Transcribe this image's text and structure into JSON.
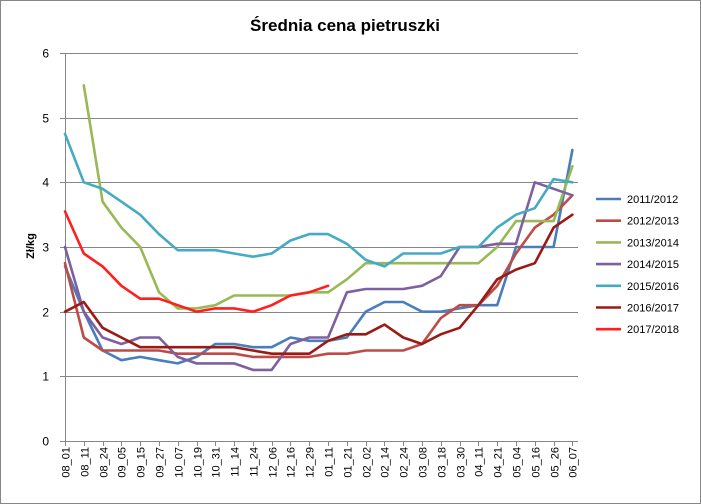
{
  "chart_data": {
    "type": "line",
    "title": "Średnia cena pietruszki",
    "ylabel": "Zł/kg",
    "xlabel": "",
    "ylim": [
      0,
      6
    ],
    "yticks": [
      0,
      1,
      2,
      3,
      4,
      5,
      6
    ],
    "grid": "horizontal",
    "legend_position": "right",
    "categories": [
      "08_01",
      "08_11",
      "08_24",
      "09_05",
      "09_15",
      "09_27",
      "10_07",
      "10_19",
      "10_31",
      "11_14",
      "11_24",
      "12_06",
      "12_16",
      "12_29",
      "01_11",
      "01_21",
      "02_02",
      "02_14",
      "02_24",
      "03_08",
      "03_18",
      "03_30",
      "04_11",
      "04_21",
      "05_04",
      "05_16",
      "05_26",
      "06_07"
    ],
    "series": [
      {
        "name": "2011/2012",
        "color": "#4a7ebb",
        "values": [
          2.7,
          2.0,
          1.4,
          1.25,
          1.3,
          1.25,
          1.2,
          1.3,
          1.5,
          1.5,
          1.45,
          1.45,
          1.6,
          1.55,
          1.55,
          1.6,
          2.0,
          2.15,
          2.15,
          2.0,
          2.0,
          2.05,
          2.1,
          2.1,
          3.0,
          3.0,
          3.0,
          4.5
        ]
      },
      {
        "name": "2012/2013",
        "color": "#be4b48",
        "values": [
          2.75,
          1.6,
          1.4,
          1.4,
          1.4,
          1.4,
          1.35,
          1.35,
          1.35,
          1.35,
          1.3,
          1.3,
          1.3,
          1.3,
          1.35,
          1.35,
          1.4,
          1.4,
          1.4,
          1.5,
          1.9,
          2.1,
          2.1,
          2.4,
          2.9,
          3.3,
          3.5,
          3.8
        ]
      },
      {
        "name": "2013/2014",
        "color": "#98b954",
        "values": [
          null,
          5.5,
          3.7,
          3.3,
          3.0,
          2.3,
          2.05,
          2.05,
          2.1,
          2.25,
          2.25,
          2.25,
          2.25,
          2.3,
          2.3,
          2.5,
          2.75,
          2.75,
          2.75,
          2.75,
          2.75,
          2.75,
          2.75,
          3.0,
          3.4,
          3.4,
          3.4,
          4.25
        ]
      },
      {
        "name": "2014/2015",
        "color": "#7d60a0",
        "values": [
          3.0,
          2.0,
          1.6,
          1.5,
          1.6,
          1.6,
          1.3,
          1.2,
          1.2,
          1.2,
          1.1,
          1.1,
          1.5,
          1.6,
          1.6,
          2.3,
          2.35,
          2.35,
          2.35,
          2.4,
          2.55,
          3.0,
          3.0,
          3.05,
          3.05,
          4.0,
          3.9,
          3.8
        ]
      },
      {
        "name": "2015/2016",
        "color": "#46aac5",
        "values": [
          4.75,
          4.0,
          3.9,
          3.7,
          3.5,
          3.2,
          2.95,
          2.95,
          2.95,
          2.9,
          2.85,
          2.9,
          3.1,
          3.2,
          3.2,
          3.05,
          2.8,
          2.7,
          2.9,
          2.9,
          2.9,
          3.0,
          3.0,
          3.3,
          3.5,
          3.6,
          4.05,
          4.0
        ]
      },
      {
        "name": "2016/2017",
        "color": "#9b1b14",
        "values": [
          2.0,
          2.15,
          1.75,
          1.6,
          1.45,
          1.45,
          1.45,
          1.45,
          1.45,
          1.45,
          1.4,
          1.35,
          1.35,
          1.35,
          1.55,
          1.65,
          1.65,
          1.8,
          1.6,
          1.5,
          1.65,
          1.75,
          2.1,
          2.5,
          2.65,
          2.75,
          3.3,
          3.5
        ]
      },
      {
        "name": "2017/2018",
        "color": "#ff1f1f",
        "values": [
          3.55,
          2.9,
          2.7,
          2.4,
          2.2,
          2.2,
          2.1,
          2.0,
          2.05,
          2.05,
          2.0,
          2.1,
          2.25,
          2.3,
          2.4,
          null,
          null,
          null,
          null,
          null,
          null,
          null,
          null,
          null,
          null,
          null,
          null,
          null
        ]
      }
    ]
  }
}
